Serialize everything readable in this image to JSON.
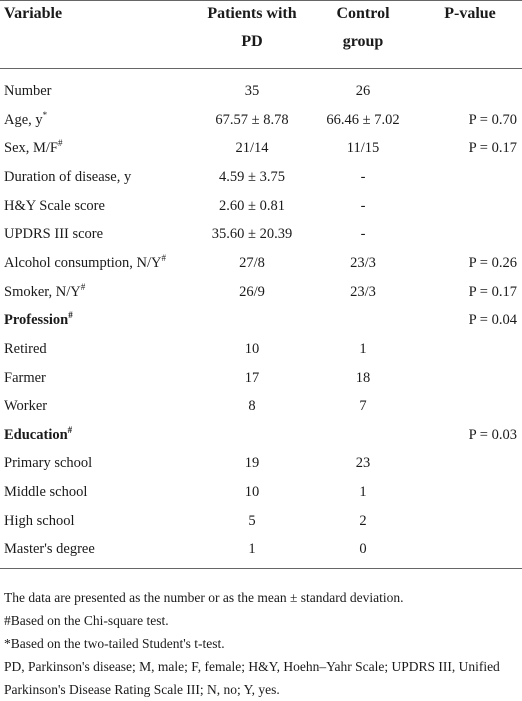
{
  "table": {
    "header": [
      "Variable",
      "Patients with PD",
      "Control group",
      "P-value"
    ],
    "rows": [
      {
        "label": "Number",
        "cells": [
          "35",
          "26",
          null
        ]
      },
      {
        "label": "Age, y",
        "mark": "*",
        "cells": [
          "67.57 ± 8.78",
          "66.46 ± 7.02",
          "P = 0.70"
        ]
      },
      {
        "label": "Sex, M/F",
        "mark": "#",
        "cells": [
          "21/14",
          "11/15",
          "P = 0.17"
        ]
      },
      {
        "label": "Duration of disease, y",
        "cells": [
          "4.59 ± 3.75",
          "-",
          null
        ]
      },
      {
        "label": "H&Y Scale score",
        "cells": [
          "2.60 ± 0.81",
          "-",
          null
        ]
      },
      {
        "label": "UPDRS III score",
        "cells": [
          "35.60 ± 20.39",
          "-",
          null
        ]
      },
      {
        "label": "Alcohol consumption, N/Y",
        "mark": "#",
        "cells": [
          "27/8",
          "23/3",
          "P = 0.26"
        ]
      },
      {
        "label": "Smoker, N/Y",
        "mark": "#",
        "cells": [
          "26/9",
          "23/3",
          "P = 0.17"
        ]
      },
      {
        "label": "Profession",
        "mark": "#",
        "section": true,
        "cells": [
          null,
          null,
          "P = 0.04"
        ]
      },
      {
        "label": "Retired",
        "cells": [
          "10",
          "1",
          null
        ]
      },
      {
        "label": "Farmer",
        "cells": [
          "17",
          "18",
          null
        ]
      },
      {
        "label": "Worker",
        "cells": [
          "8",
          "7",
          null
        ]
      },
      {
        "label": "Education",
        "mark": "#",
        "section": true,
        "cells": [
          null,
          null,
          "P = 0.03"
        ]
      },
      {
        "label": "Primary school",
        "cells": [
          "19",
          "23",
          null
        ]
      },
      {
        "label": "Middle school",
        "cells": [
          "10",
          "1",
          null
        ]
      },
      {
        "label": "High school",
        "cells": [
          "5",
          "2",
          null
        ]
      },
      {
        "label": "Master's degree",
        "cells": [
          "1",
          "0",
          null
        ]
      }
    ],
    "footnotes": [
      "The data are presented as the number or as the mean ± standard deviation.",
      "#Based on the Chi-square test.",
      "*Based on the two-tailed Student's t-test.",
      "PD, Parkinson's disease; M, male; F, female; H&Y, Hoehn–Yahr Scale; UPDRS III, Unified Parkinson's Disease Rating Scale III; N, no; Y, yes."
    ]
  }
}
